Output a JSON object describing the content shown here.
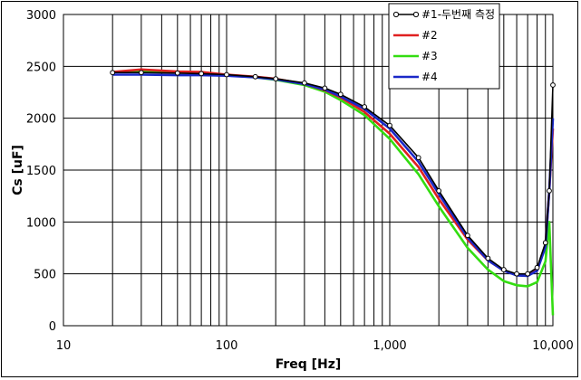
{
  "chart_data": {
    "type": "line",
    "title": "",
    "xlabel": "Freq [Hz]",
    "ylabel": "Cs [uF]",
    "xscale": "log",
    "xlim": [
      10,
      10000
    ],
    "ylim": [
      0,
      3000
    ],
    "xticks": [
      10,
      100,
      1000,
      10000
    ],
    "xtick_labels": [
      "10",
      "100",
      "1,000",
      "10,000"
    ],
    "yticks": [
      0,
      500,
      1000,
      1500,
      2000,
      2500,
      3000
    ],
    "ytick_labels": [
      "0",
      "500",
      "1000",
      "1500",
      "2000",
      "2500",
      "3000"
    ],
    "grid": true,
    "legend_position": "top-right",
    "series": [
      {
        "name": "#1-두번째 측정",
        "color": "#000000",
        "markers": true,
        "x": [
          20,
          30,
          50,
          70,
          100,
          150,
          200,
          300,
          400,
          500,
          700,
          1000,
          1500,
          2000,
          3000,
          4000,
          5000,
          6000,
          7000,
          8000,
          9000,
          9500,
          10000
        ],
        "y": [
          2440,
          2440,
          2435,
          2430,
          2420,
          2400,
          2380,
          2340,
          2290,
          2230,
          2110,
          1930,
          1620,
          1300,
          870,
          650,
          540,
          500,
          500,
          560,
          800,
          1300,
          2320
        ]
      },
      {
        "name": "#2",
        "color": "#e02020",
        "markers": false,
        "x": [
          20,
          30,
          50,
          70,
          100,
          150,
          200,
          300,
          400,
          500,
          700,
          1000,
          1500,
          2000,
          3000,
          4000,
          5000,
          6000,
          7000,
          8000,
          9000,
          9500,
          10000
        ],
        "y": [
          2445,
          2470,
          2450,
          2445,
          2420,
          2400,
          2380,
          2330,
          2270,
          2200,
          2060,
          1850,
          1530,
          1220,
          830,
          630,
          530,
          490,
          490,
          540,
          780,
          1300,
          1900
        ]
      },
      {
        "name": "#3",
        "color": "#33dd11",
        "markers": false,
        "x": [
          20,
          30,
          50,
          70,
          100,
          150,
          200,
          300,
          400,
          500,
          700,
          1000,
          1500,
          2000,
          3000,
          4000,
          5000,
          6000,
          7000,
          8000,
          9000,
          9500,
          10000
        ],
        "y": [
          2445,
          2455,
          2445,
          2440,
          2415,
          2395,
          2370,
          2320,
          2255,
          2175,
          2030,
          1800,
          1460,
          1150,
          750,
          540,
          430,
          390,
          380,
          420,
          620,
          1000,
          100
        ]
      },
      {
        "name": "#4",
        "color": "#1a28c8",
        "markers": false,
        "x": [
          20,
          30,
          50,
          70,
          100,
          150,
          200,
          300,
          400,
          500,
          700,
          1000,
          1500,
          2000,
          3000,
          4000,
          5000,
          6000,
          7000,
          8000,
          9000,
          9500,
          10000
        ],
        "y": [
          2420,
          2420,
          2415,
          2415,
          2410,
          2395,
          2375,
          2330,
          2275,
          2210,
          2090,
          1900,
          1580,
          1270,
          850,
          630,
          530,
          485,
          480,
          530,
          760,
          1300,
          2000
        ]
      }
    ]
  }
}
